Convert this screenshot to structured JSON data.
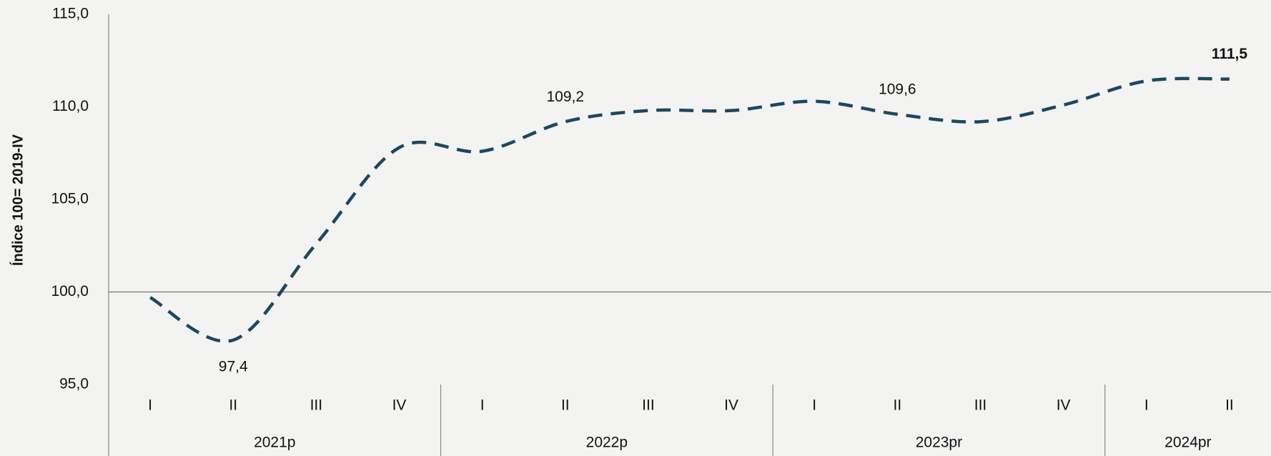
{
  "chart_data": {
    "type": "line",
    "y_label": "Índice 100= 2019-IV",
    "categories": [
      "I",
      "II",
      "III",
      "IV",
      "I",
      "II",
      "III",
      "IV",
      "I",
      "II",
      "III",
      "IV",
      "I",
      "II"
    ],
    "groups": [
      {
        "name": "2021p",
        "span": 4
      },
      {
        "name": "2022p",
        "span": 4
      },
      {
        "name": "2023pr",
        "span": 4
      },
      {
        "name": "2024pr",
        "span": 2
      }
    ],
    "series": [
      {
        "name": "Índice",
        "color": "#1d4760",
        "dashed": true,
        "values": [
          99.7,
          97.4,
          102.6,
          107.8,
          107.6,
          109.2,
          109.8,
          109.8,
          110.3,
          109.6,
          109.2,
          110.1,
          111.4,
          111.5
        ],
        "value_labels": [
          null,
          "97,4",
          null,
          null,
          null,
          "109,2",
          null,
          null,
          null,
          "109,6",
          null,
          null,
          null,
          "111,5"
        ]
      }
    ],
    "ylim": [
      95,
      115
    ],
    "yticks": [
      {
        "value": 95,
        "label": "95,0"
      },
      {
        "value": 100,
        "label": "100,0"
      },
      {
        "value": 105,
        "label": "105,0"
      },
      {
        "value": 110,
        "label": "110,0"
      },
      {
        "value": 115,
        "label": "115,0"
      }
    ],
    "reference_line": 100
  }
}
